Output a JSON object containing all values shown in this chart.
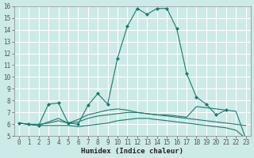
{
  "title": "",
  "xlabel": "Humidex (Indice chaleur)",
  "ylabel": "",
  "xlim": [
    -0.5,
    23.5
  ],
  "ylim": [
    5,
    16
  ],
  "xticks": [
    0,
    1,
    2,
    3,
    4,
    5,
    6,
    7,
    8,
    9,
    10,
    11,
    12,
    13,
    14,
    15,
    16,
    17,
    18,
    19,
    20,
    21,
    22,
    23
  ],
  "yticks": [
    5,
    6,
    7,
    8,
    9,
    10,
    11,
    12,
    13,
    14,
    15,
    16
  ],
  "bg_color": "#cceae7",
  "grid_color": "#ffffff",
  "line_color": "#1a7a6e",
  "lines": [
    {
      "x": [
        0,
        1,
        2,
        3,
        4,
        5,
        6,
        7,
        8,
        9,
        10,
        11,
        12,
        13,
        14,
        15,
        16,
        17,
        18,
        19,
        20,
        21
      ],
      "y": [
        6.1,
        6.0,
        5.9,
        7.7,
        7.8,
        6.1,
        6.0,
        7.6,
        8.6,
        7.7,
        11.6,
        14.3,
        15.8,
        15.3,
        15.8,
        15.8,
        14.1,
        10.3,
        8.3,
        7.7,
        6.8,
        7.2
      ],
      "marker": "D",
      "markersize": 2.0
    },
    {
      "x": [
        0,
        1,
        2,
        3,
        4,
        5,
        6,
        7,
        8,
        9,
        10,
        11,
        12,
        13,
        14,
        15,
        16,
        17,
        18,
        19,
        20,
        21,
        22,
        23
      ],
      "y": [
        6.1,
        6.0,
        5.9,
        6.2,
        6.5,
        6.1,
        6.4,
        6.8,
        7.0,
        7.2,
        7.3,
        7.2,
        7.0,
        6.9,
        6.8,
        6.7,
        6.6,
        6.5,
        6.4,
        6.3,
        6.2,
        6.1,
        6.0,
        5.9
      ],
      "marker": null,
      "markersize": 0
    },
    {
      "x": [
        0,
        1,
        2,
        3,
        4,
        5,
        6,
        7,
        8,
        9,
        10,
        11,
        12,
        13,
        14,
        15,
        16,
        17,
        18,
        19,
        20,
        21,
        22,
        23
      ],
      "y": [
        6.1,
        6.0,
        6.0,
        6.1,
        6.3,
        6.1,
        6.2,
        6.5,
        6.7,
        6.8,
        6.9,
        7.0,
        7.0,
        6.9,
        6.8,
        6.8,
        6.7,
        6.6,
        7.5,
        7.4,
        7.3,
        7.2,
        7.1,
        4.8
      ],
      "marker": null,
      "markersize": 0
    },
    {
      "x": [
        0,
        1,
        2,
        3,
        4,
        5,
        6,
        7,
        8,
        9,
        10,
        11,
        12,
        13,
        14,
        15,
        16,
        17,
        18,
        19,
        20,
        21,
        22,
        23
      ],
      "y": [
        6.1,
        6.0,
        5.9,
        5.9,
        5.9,
        5.9,
        5.8,
        5.9,
        6.0,
        6.1,
        6.3,
        6.4,
        6.5,
        6.5,
        6.4,
        6.3,
        6.2,
        6.1,
        6.0,
        5.9,
        5.8,
        5.7,
        5.5,
        4.8
      ],
      "marker": null,
      "markersize": 0
    }
  ],
  "tick_fontsize": 5.5,
  "label_fontsize": 6.5,
  "spine_color": "#888888",
  "tick_color": "#555555"
}
